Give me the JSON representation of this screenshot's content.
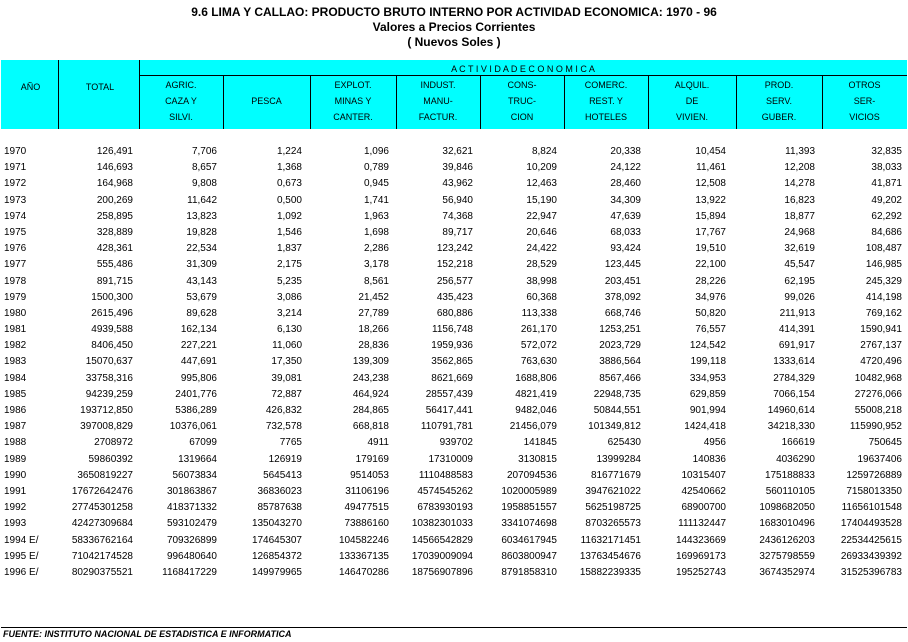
{
  "title": "9.6  LIMA Y CALLAO: PRODUCTO BRUTO INTERNO POR ACTIVIDAD ECONOMICA: 1970 - 96",
  "subtitle1": "Valores a Precios Corrientes",
  "subtitle2": "( Nuevos Soles )",
  "header": {
    "year": "AÑO",
    "total": "TOTAL",
    "group": "A  C  T  I  V  I  D  A  D     E  C  O  N  O  M  I  C  A",
    "columns": [
      [
        "AGRIC.",
        "CAZA Y",
        "SILVI."
      ],
      [
        "",
        "PESCA",
        ""
      ],
      [
        "EXPLOT.",
        "MINAS Y",
        "CANTER."
      ],
      [
        "INDUST.",
        "MANU-",
        "FACTUR."
      ],
      [
        "CONS-",
        "TRUC-",
        "CION"
      ],
      [
        "COMERC.",
        "REST. Y",
        "HOTELES"
      ],
      [
        "ALQUIL.",
        "DE",
        "VIVIEN."
      ],
      [
        "PROD.",
        "SERV.",
        "GUBER."
      ],
      [
        "OTROS",
        "SER-",
        "VICIOS"
      ]
    ]
  },
  "rows": [
    [
      "1970",
      "126,491",
      "7,706",
      "1,224",
      "1,096",
      "32,621",
      "8,824",
      "20,338",
      "10,454",
      "11,393",
      "32,835"
    ],
    [
      "1971",
      "146,693",
      "8,657",
      "1,368",
      "0,789",
      "39,846",
      "10,209",
      "24,122",
      "11,461",
      "12,208",
      "38,033"
    ],
    [
      "1972",
      "164,968",
      "9,808",
      "0,673",
      "0,945",
      "43,962",
      "12,463",
      "28,460",
      "12,508",
      "14,278",
      "41,871"
    ],
    [
      "1973",
      "200,269",
      "11,642",
      "0,500",
      "1,741",
      "56,940",
      "15,190",
      "34,309",
      "13,922",
      "16,823",
      "49,202"
    ],
    [
      "1974",
      "258,895",
      "13,823",
      "1,092",
      "1,963",
      "74,368",
      "22,947",
      "47,639",
      "15,894",
      "18,877",
      "62,292"
    ],
    [
      "1975",
      "328,889",
      "19,828",
      "1,546",
      "1,698",
      "89,717",
      "20,646",
      "68,033",
      "17,767",
      "24,968",
      "84,686"
    ],
    [
      "1976",
      "428,361",
      "22,534",
      "1,837",
      "2,286",
      "123,242",
      "24,422",
      "93,424",
      "19,510",
      "32,619",
      "108,487"
    ],
    [
      "1977",
      "555,486",
      "31,309",
      "2,175",
      "3,178",
      "152,218",
      "28,529",
      "123,445",
      "22,100",
      "45,547",
      "146,985"
    ],
    [
      "1978",
      "891,715",
      "43,143",
      "5,235",
      "8,561",
      "256,577",
      "38,998",
      "203,451",
      "28,226",
      "62,195",
      "245,329"
    ],
    [
      "1979",
      "1500,300",
      "53,679",
      "3,086",
      "21,452",
      "435,423",
      "60,368",
      "378,092",
      "34,976",
      "99,026",
      "414,198"
    ],
    [
      "1980",
      "2615,496",
      "89,628",
      "3,214",
      "27,789",
      "680,886",
      "113,338",
      "668,746",
      "50,820",
      "211,913",
      "769,162"
    ],
    [
      "1981",
      "4939,588",
      "162,134",
      "6,130",
      "18,266",
      "1156,748",
      "261,170",
      "1253,251",
      "76,557",
      "414,391",
      "1590,941"
    ],
    [
      "1982",
      "8406,450",
      "227,221",
      "11,060",
      "28,836",
      "1959,936",
      "572,072",
      "2023,729",
      "124,542",
      "691,917",
      "2767,137"
    ],
    [
      "1983",
      "15070,637",
      "447,691",
      "17,350",
      "139,309",
      "3562,865",
      "763,630",
      "3886,564",
      "199,118",
      "1333,614",
      "4720,496"
    ],
    [
      "1984",
      "33758,316",
      "995,806",
      "39,081",
      "243,238",
      "8621,669",
      "1688,806",
      "8567,466",
      "334,953",
      "2784,329",
      "10482,968"
    ],
    [
      "1985",
      "94239,259",
      "2401,776",
      "72,887",
      "464,924",
      "28557,439",
      "4821,419",
      "22948,735",
      "629,859",
      "7066,154",
      "27276,066"
    ],
    [
      "1986",
      "193712,850",
      "5386,289",
      "426,832",
      "284,865",
      "56417,441",
      "9482,046",
      "50844,551",
      "901,994",
      "14960,614",
      "55008,218"
    ],
    [
      "1987",
      "397008,829",
      "10376,061",
      "732,578",
      "668,818",
      "110791,781",
      "21456,079",
      "101349,812",
      "1424,418",
      "34218,330",
      "115990,952"
    ],
    [
      "1988",
      "2708972",
      "67099",
      "7765",
      "4911",
      "939702",
      "141845",
      "625430",
      "4956",
      "166619",
      "750645"
    ],
    [
      "1989",
      "59860392",
      "1319664",
      "126919",
      "179169",
      "17310009",
      "3130815",
      "13999284",
      "140836",
      "4036290",
      "19637406"
    ],
    [
      "1990",
      "3650819227",
      "56073834",
      "5645413",
      "9514053",
      "1110488583",
      "207094536",
      "816771679",
      "10315407",
      "175188833",
      "1259726889"
    ],
    [
      "1991",
      "17672642476",
      "301863867",
      "36836023",
      "31106196",
      "4574545262",
      "1020005989",
      "3947621022",
      "42540662",
      "560110105",
      "7158013350"
    ],
    [
      "1992",
      "27745301258",
      "418371332",
      "85787638",
      "49477515",
      "6783930193",
      "1958851557",
      "5625198725",
      "68900700",
      "1098682050",
      "11656101548"
    ],
    [
      "1993",
      "42427309684",
      "593102479",
      "135043270",
      "73886160",
      "10382301033",
      "3341074698",
      "8703265573",
      "111132447",
      "1683010496",
      "17404493528"
    ],
    [
      "1994 E/",
      "58336762164",
      "709326899",
      "174645307",
      "104582246",
      "14566542829",
      "6034617945",
      "11632171451",
      "144323669",
      "2436126203",
      "22534425615"
    ],
    [
      "1995 E/",
      "71042174528",
      "996480640",
      "126854372",
      "133367135",
      "17039009094",
      "8603800947",
      "13763454676",
      "169969173",
      "3275798559",
      "26933439392"
    ],
    [
      "1996 E/",
      "80290375521",
      "1168417229",
      "149979965",
      "146470286",
      "18756907896",
      "8791858310",
      "15882239335",
      "195252743",
      "3674352974",
      "31525396783"
    ]
  ],
  "footer": "FUENTE: INSTITUTO NACIONAL DE ESTADISTICA E INFORMATICA"
}
